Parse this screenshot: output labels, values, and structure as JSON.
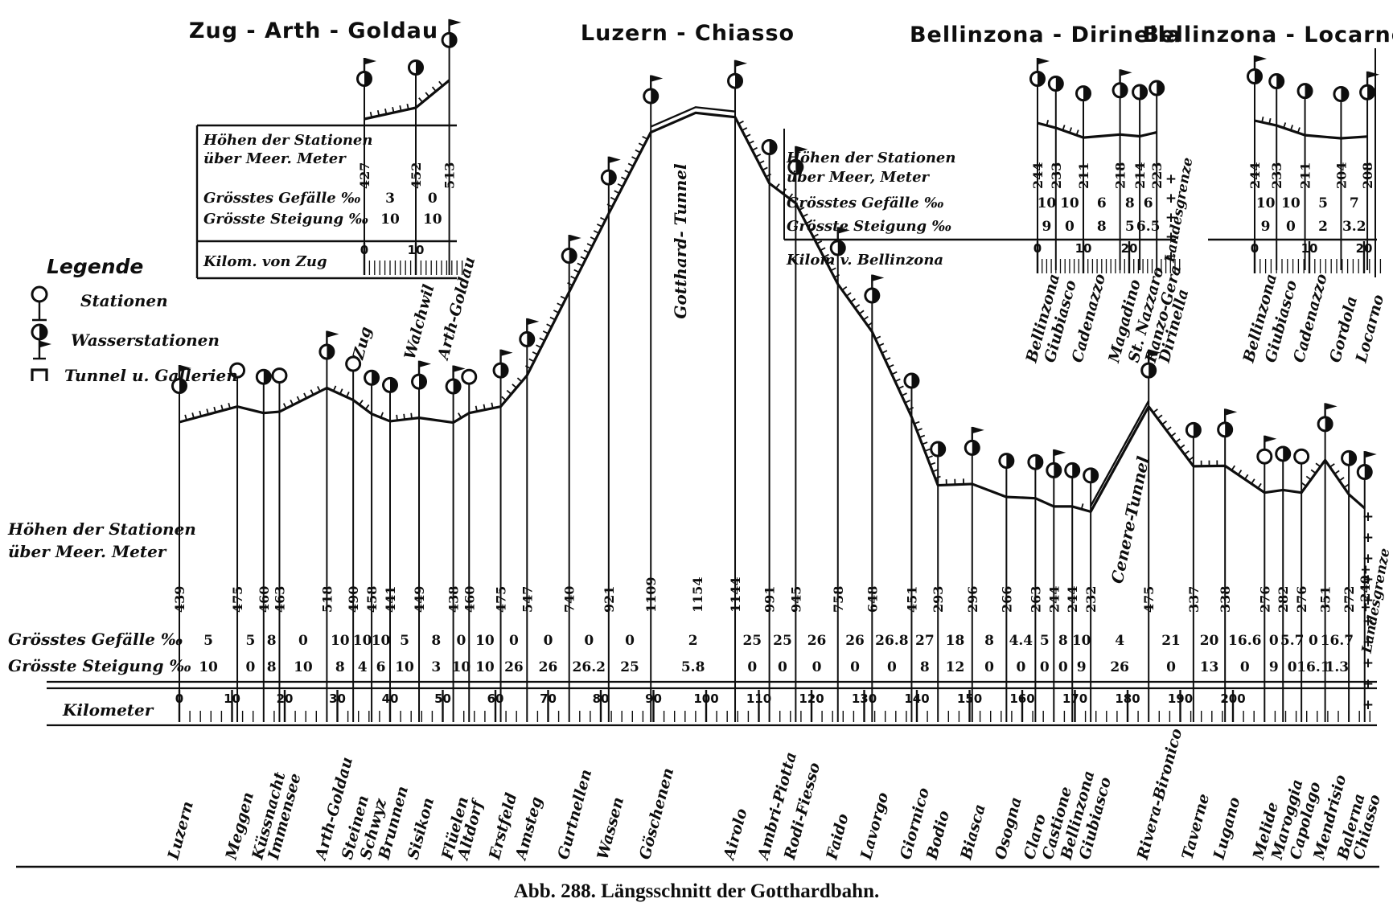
{
  "figure_caption": "Abb. 288. Längsschnitt der Gotthardbahn.",
  "ink_color": "#0e0e0e",
  "paper_color": "#ffffff",
  "legend": {
    "title": "Legende",
    "items": [
      {
        "icon": "station-icon",
        "label": "Stationen"
      },
      {
        "icon": "water-station-icon",
        "label": "Wasserstationen"
      },
      {
        "icon": "tunnel-icon",
        "label": "Tunnel u. Gallerien"
      }
    ]
  },
  "chart_data": [
    {
      "id": "zug-arth-goldau",
      "type": "line",
      "title": "Zug - Arth - Goldau",
      "row_labels": {
        "heights_1": "Höhen der Stationen",
        "heights_2": "über Meer. Meter",
        "max_descent": "Grösstes Gefälle ‰",
        "max_ascent": "Grösste Steigung ‰",
        "distance": "Kilom. von Zug"
      },
      "stations": [
        {
          "name": "Zug",
          "km": 0,
          "elevation": 427,
          "water": true,
          "flag": true
        },
        {
          "name": "Walchwil",
          "km": 10,
          "elevation": 452,
          "water": true,
          "flag": false
        },
        {
          "name": "Arth-Goldau",
          "km": 16.5,
          "elevation": 513,
          "water": true,
          "flag": true
        }
      ],
      "segments": [
        {
          "max_descent": 3,
          "max_ascent": 10
        },
        {
          "max_descent": 0,
          "max_ascent": 10
        }
      ],
      "km_ticks": [
        0,
        10
      ]
    },
    {
      "id": "luzern-chiasso",
      "type": "line",
      "title": "Luzern - Chiasso",
      "row_labels": {
        "heights_1": "Höhen der Stationen",
        "heights_2": "über Meer. Meter",
        "max_descent": "Grösstes Gefälle ‰",
        "max_ascent": "Grösste Steigung ‰",
        "distance": "Kilometer"
      },
      "summit": {
        "km": 98,
        "elevation": 1154
      },
      "tunnels": [
        {
          "name": "Gotthard- Tunnel",
          "label_km": 98
        },
        {
          "name": "Cenere-Tunnel",
          "label_km": 181
        }
      ],
      "border": {
        "label": "Landesgrenze"
      },
      "stations": [
        {
          "name": "Luzern",
          "km": 0,
          "elevation": 439,
          "water": true,
          "flag": true
        },
        {
          "name": "Meggen",
          "km": 11,
          "elevation": 475,
          "water": false,
          "flag": false
        },
        {
          "name": "Küssnacht",
          "km": 16,
          "elevation": 460,
          "water": true,
          "flag": false
        },
        {
          "name": "Immensee",
          "km": 19,
          "elevation": 463,
          "water": false,
          "flag": false
        },
        {
          "name": "Arth-Goldau",
          "km": 28,
          "elevation": 518,
          "water": true,
          "flag": true
        },
        {
          "name": "Steinen",
          "km": 33,
          "elevation": 490,
          "water": false,
          "flag": false
        },
        {
          "name": "Schwyz",
          "km": 36.5,
          "elevation": 458,
          "water": true,
          "flag": false
        },
        {
          "name": "Brunnen",
          "km": 40,
          "elevation": 441,
          "water": true,
          "flag": false
        },
        {
          "name": "Sisikon",
          "km": 45.5,
          "elevation": 449,
          "water": true,
          "flag": true
        },
        {
          "name": "Flüelen",
          "km": 52,
          "elevation": 438,
          "water": true,
          "flag": true
        },
        {
          "name": "Altdorf",
          "km": 55,
          "elevation": 460,
          "water": false,
          "flag": false
        },
        {
          "name": "Erstfeld",
          "km": 61,
          "elevation": 475,
          "water": true,
          "flag": true
        },
        {
          "name": "Amsteg",
          "km": 66,
          "elevation": 547,
          "water": true,
          "flag": true
        },
        {
          "name": "Gurtnellen",
          "km": 74,
          "elevation": 740,
          "water": true,
          "flag": true
        },
        {
          "name": "Wassen",
          "km": 81.5,
          "elevation": 921,
          "water": true,
          "flag": true
        },
        {
          "name": "Göschenen",
          "km": 89.5,
          "elevation": 1109,
          "water": true,
          "flag": true
        },
        {
          "name": "Airolo",
          "km": 105.5,
          "elevation": 1144,
          "water": true,
          "flag": true
        },
        {
          "name": "Ambri-Piotta",
          "km": 112,
          "elevation": 991,
          "water": true,
          "flag": false
        },
        {
          "name": "Rodi-Fiesso",
          "km": 117,
          "elevation": 945,
          "water": true,
          "flag": true
        },
        {
          "name": "Faido",
          "km": 125,
          "elevation": 758,
          "water": true,
          "flag": true
        },
        {
          "name": "Lavorgo",
          "km": 131.5,
          "elevation": 648,
          "water": true,
          "flag": true
        },
        {
          "name": "Giornico",
          "km": 139,
          "elevation": 451,
          "water": true,
          "flag": false
        },
        {
          "name": "Bodio",
          "km": 144,
          "elevation": 293,
          "water": true,
          "flag": false
        },
        {
          "name": "Biasca",
          "km": 150.5,
          "elevation": 296,
          "water": true,
          "flag": true
        },
        {
          "name": "Osogna",
          "km": 157,
          "elevation": 266,
          "water": true,
          "flag": false
        },
        {
          "name": "Claro",
          "km": 162.5,
          "elevation": 263,
          "water": true,
          "flag": false
        },
        {
          "name": "Castione",
          "km": 166,
          "elevation": 244,
          "water": true,
          "flag": true
        },
        {
          "name": "Bellinzona",
          "km": 169.5,
          "elevation": 244,
          "water": true,
          "flag": false
        },
        {
          "name": "Giubiasco",
          "km": 173,
          "elevation": 232,
          "water": true,
          "flag": false
        },
        {
          "name": "Rivera-Bironico",
          "km": 184,
          "elevation": 475,
          "water": true,
          "flag": true
        },
        {
          "name": "Taverne",
          "km": 192.5,
          "elevation": 337,
          "water": true,
          "flag": false
        },
        {
          "name": "Lugano",
          "km": 198.5,
          "elevation": 338,
          "water": true,
          "flag": true
        },
        {
          "name": "Melide",
          "km": 206,
          "elevation": 276,
          "water": false,
          "flag": true
        },
        {
          "name": "Maroggia",
          "km": 209.5,
          "elevation": 282,
          "water": true,
          "flag": false
        },
        {
          "name": "Capolago",
          "km": 213,
          "elevation": 276,
          "water": false,
          "flag": false
        },
        {
          "name": "Mendrisio",
          "km": 217.5,
          "elevation": 351,
          "water": true,
          "flag": true
        },
        {
          "name": "Balerna",
          "km": 222,
          "elevation": 272,
          "water": true,
          "flag": false
        },
        {
          "name": "Chiasso",
          "km": 225,
          "elevation": 240,
          "elevation_label": "+240+",
          "water": true,
          "flag": true
        }
      ],
      "segments": [
        {
          "max_descent": 5,
          "max_ascent": 10
        },
        {
          "max_descent": 5,
          "max_ascent": 0
        },
        {
          "max_descent": 8,
          "max_ascent": 8
        },
        {
          "max_descent": 0,
          "max_ascent": 10
        },
        {
          "max_descent": 10,
          "max_ascent": 8
        },
        {
          "max_descent": 10,
          "max_ascent": 4
        },
        {
          "max_descent": 10,
          "max_ascent": 6
        },
        {
          "max_descent": 5,
          "max_ascent": 10
        },
        {
          "max_descent": 8,
          "max_ascent": 3
        },
        {
          "max_descent": 0,
          "max_ascent": 10
        },
        {
          "max_descent": 10,
          "max_ascent": 10
        },
        {
          "max_descent": 0,
          "max_ascent": 26
        },
        {
          "max_descent": 0,
          "max_ascent": 26
        },
        {
          "max_descent": 0,
          "max_ascent": 26.2
        },
        {
          "max_descent": 0,
          "max_ascent": 25
        },
        {
          "max_descent": 2,
          "max_ascent": 5.8,
          "tunnel": true
        },
        {
          "max_descent": 25,
          "max_ascent": 0
        },
        {
          "max_descent": 25,
          "max_ascent": 0
        },
        {
          "max_descent": 26,
          "max_ascent": 0
        },
        {
          "max_descent": 26,
          "max_ascent": 0
        },
        {
          "max_descent": 26.8,
          "max_ascent": 0
        },
        {
          "max_descent": 27,
          "max_ascent": 8
        },
        {
          "max_descent": 18,
          "max_ascent": 12
        },
        {
          "max_descent": 8,
          "max_ascent": 0
        },
        {
          "max_descent": 4.4,
          "max_ascent": 0
        },
        {
          "max_descent": 5,
          "max_ascent": 0
        },
        {
          "max_descent": 8,
          "max_ascent": 0
        },
        {
          "max_descent": 10,
          "max_ascent": 9
        },
        {
          "max_descent": 4,
          "max_ascent": 26,
          "tunnel": true
        },
        {
          "max_descent": 21,
          "max_ascent": 0
        },
        {
          "max_descent": 20,
          "max_ascent": 13
        },
        {
          "max_descent": 16.6,
          "max_ascent": 0
        },
        {
          "max_descent": 0,
          "max_ascent": 9
        },
        {
          "max_descent": 5.7,
          "max_ascent": 0
        },
        {
          "max_descent": 0,
          "max_ascent": 16.1
        },
        {
          "max_descent": 16.7,
          "max_ascent": 1.3
        },
        {
          "max_descent": null,
          "max_ascent": null
        }
      ],
      "km_ticks": [
        0,
        10,
        20,
        30,
        40,
        50,
        60,
        70,
        80,
        90,
        100,
        110,
        120,
        130,
        140,
        150,
        160,
        170,
        180,
        190,
        200
      ]
    },
    {
      "id": "bellinzona-dirinella",
      "type": "line",
      "title": "Bellinzona - Dirinella",
      "row_labels": {
        "heights_1": "Höhen der Stationen",
        "heights_2": "über Meer, Meter",
        "max_descent": "Grösstes Gefälle ‰",
        "max_ascent": "Grösste Steigung ‰",
        "distance": "Kilom v. Bellinzona"
      },
      "border": {
        "label": "Landesgrenze"
      },
      "stations": [
        {
          "name": "Bellinzona",
          "km": 0,
          "elevation": 244,
          "water": true,
          "flag": true
        },
        {
          "name": "Giubiasco",
          "km": 4,
          "elevation": 233,
          "water": true,
          "flag": false
        },
        {
          "name": "Cadenazzo",
          "km": 10,
          "elevation": 211,
          "water": true,
          "flag": false
        },
        {
          "name": "Magadino",
          "km": 18,
          "elevation": 218,
          "water": true,
          "flag": true
        },
        {
          "name": "St. Nazzaro",
          "km": 22.3,
          "elevation": 214,
          "water": true,
          "flag": false
        },
        {
          "name": "Ranzo-Gera",
          "km": 26,
          "elevation": 223,
          "water": true,
          "flag": false
        },
        {
          "name": "Dirinella",
          "km": 29,
          "elevation": null,
          "water": false,
          "flag": false
        }
      ],
      "segments": [
        {
          "max_descent": 10,
          "max_ascent": 9
        },
        {
          "max_descent": 10,
          "max_ascent": 0
        },
        {
          "max_descent": 6,
          "max_ascent": 8
        },
        {
          "max_descent": 8,
          "max_ascent": 5
        },
        {
          "max_descent": 6,
          "max_ascent": 6.5
        },
        {
          "max_descent": null,
          "max_ascent": null
        }
      ],
      "km_ticks": [
        0,
        10,
        20
      ]
    },
    {
      "id": "bellinzona-locarno",
      "type": "line",
      "title": "Bellinzona - Locarno",
      "stations": [
        {
          "name": "Bellinzona",
          "km": 0,
          "elevation": 244,
          "water": true,
          "flag": true
        },
        {
          "name": "Giubiasco",
          "km": 4,
          "elevation": 233,
          "water": true,
          "flag": false
        },
        {
          "name": "Cadenazzo",
          "km": 9.2,
          "elevation": 211,
          "water": true,
          "flag": false
        },
        {
          "name": "Gordola",
          "km": 15.8,
          "elevation": 204,
          "water": true,
          "flag": false
        },
        {
          "name": "Locarno",
          "km": 20.6,
          "elevation": 208,
          "water": true,
          "flag": true
        }
      ],
      "segments": [
        {
          "max_descent": 10,
          "max_ascent": 9
        },
        {
          "max_descent": 10,
          "max_ascent": 0
        },
        {
          "max_descent": 5,
          "max_ascent": 2
        },
        {
          "max_descent": 7,
          "max_ascent": 3.2
        }
      ],
      "km_ticks": [
        0,
        10,
        20
      ]
    }
  ]
}
